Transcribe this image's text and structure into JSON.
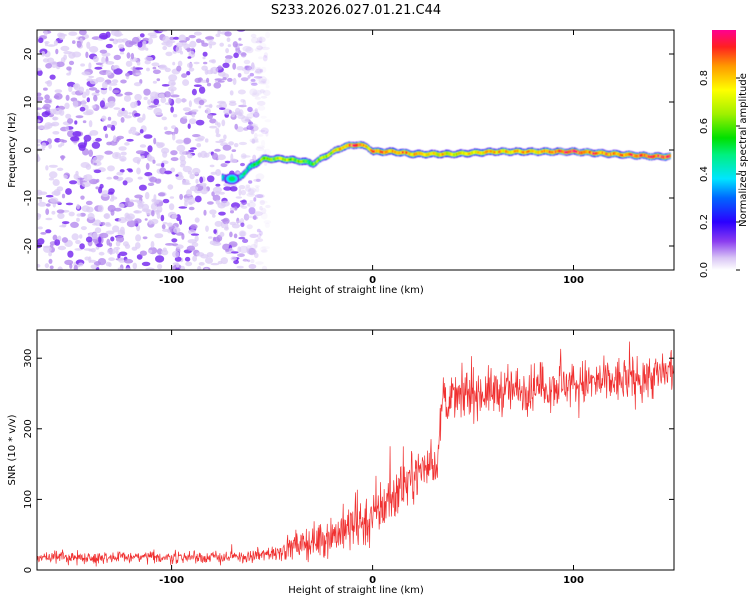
{
  "title": "S233.2026.027.01.21.C44",
  "chart_data": [
    {
      "type": "heatmap",
      "xlabel": "Height of straight line (km)",
      "ylabel": "Frequency (Hz)",
      "xlim": [
        -167,
        150
      ],
      "ylim": [
        -25,
        25
      ],
      "xticks": [
        -100,
        0,
        100
      ],
      "yticks": [
        -20,
        -10,
        0,
        10,
        20
      ],
      "noise_region_km": [
        -167,
        -60
      ],
      "ridge": {
        "x": [
          -75,
          -68,
          -62,
          -55,
          -45,
          -35,
          -30,
          -22,
          -15,
          -8,
          -3,
          0,
          10,
          20,
          40,
          60,
          80,
          100,
          120,
          140,
          148
        ],
        "freq": [
          -6,
          -6.5,
          -4,
          -2,
          -2,
          -2.5,
          -3,
          -1,
          0.5,
          1,
          0.5,
          -0.5,
          -0.5,
          -1,
          -1,
          -0.5,
          -0.5,
          -0.5,
          -1,
          -1.5,
          -1.5
        ],
        "amplitude": [
          0.4,
          0.45,
          0.4,
          0.55,
          0.6,
          0.55,
          0.5,
          0.65,
          0.8,
          0.9,
          0.75,
          0.85,
          0.8,
          0.8,
          0.7,
          0.75,
          0.75,
          0.9,
          0.8,
          0.9,
          0.85
        ]
      },
      "colorbar": {
        "label": "Normalized spectral amplitude",
        "ticks": [
          0.0,
          0.2,
          0.4,
          0.6,
          0.8
        ],
        "range": [
          0.0,
          1.0
        ]
      }
    },
    {
      "type": "line",
      "xlabel": "Height of straight line (km)",
      "ylabel": "SNR (10 * v/v)",
      "xlim": [
        -167,
        150
      ],
      "ylim": [
        0,
        340
      ],
      "xticks": [
        -100,
        0,
        100
      ],
      "yticks": [
        0,
        100,
        200,
        300
      ],
      "series": [
        {
          "name": "SNR",
          "color": "#f03030",
          "x_knots": [
            -167,
            -60,
            -45,
            -30,
            -15,
            0,
            15,
            25,
            32,
            35,
            50,
            70,
            90,
            110,
            130,
            150
          ],
          "mean_knots": [
            18,
            18,
            28,
            40,
            55,
            75,
            120,
            145,
            150,
            240,
            250,
            255,
            262,
            265,
            270,
            280
          ],
          "noise_amplitude_knots": [
            8,
            8,
            14,
            22,
            30,
            38,
            35,
            25,
            25,
            28,
            30,
            30,
            30,
            30,
            30,
            30
          ]
        }
      ]
    }
  ]
}
